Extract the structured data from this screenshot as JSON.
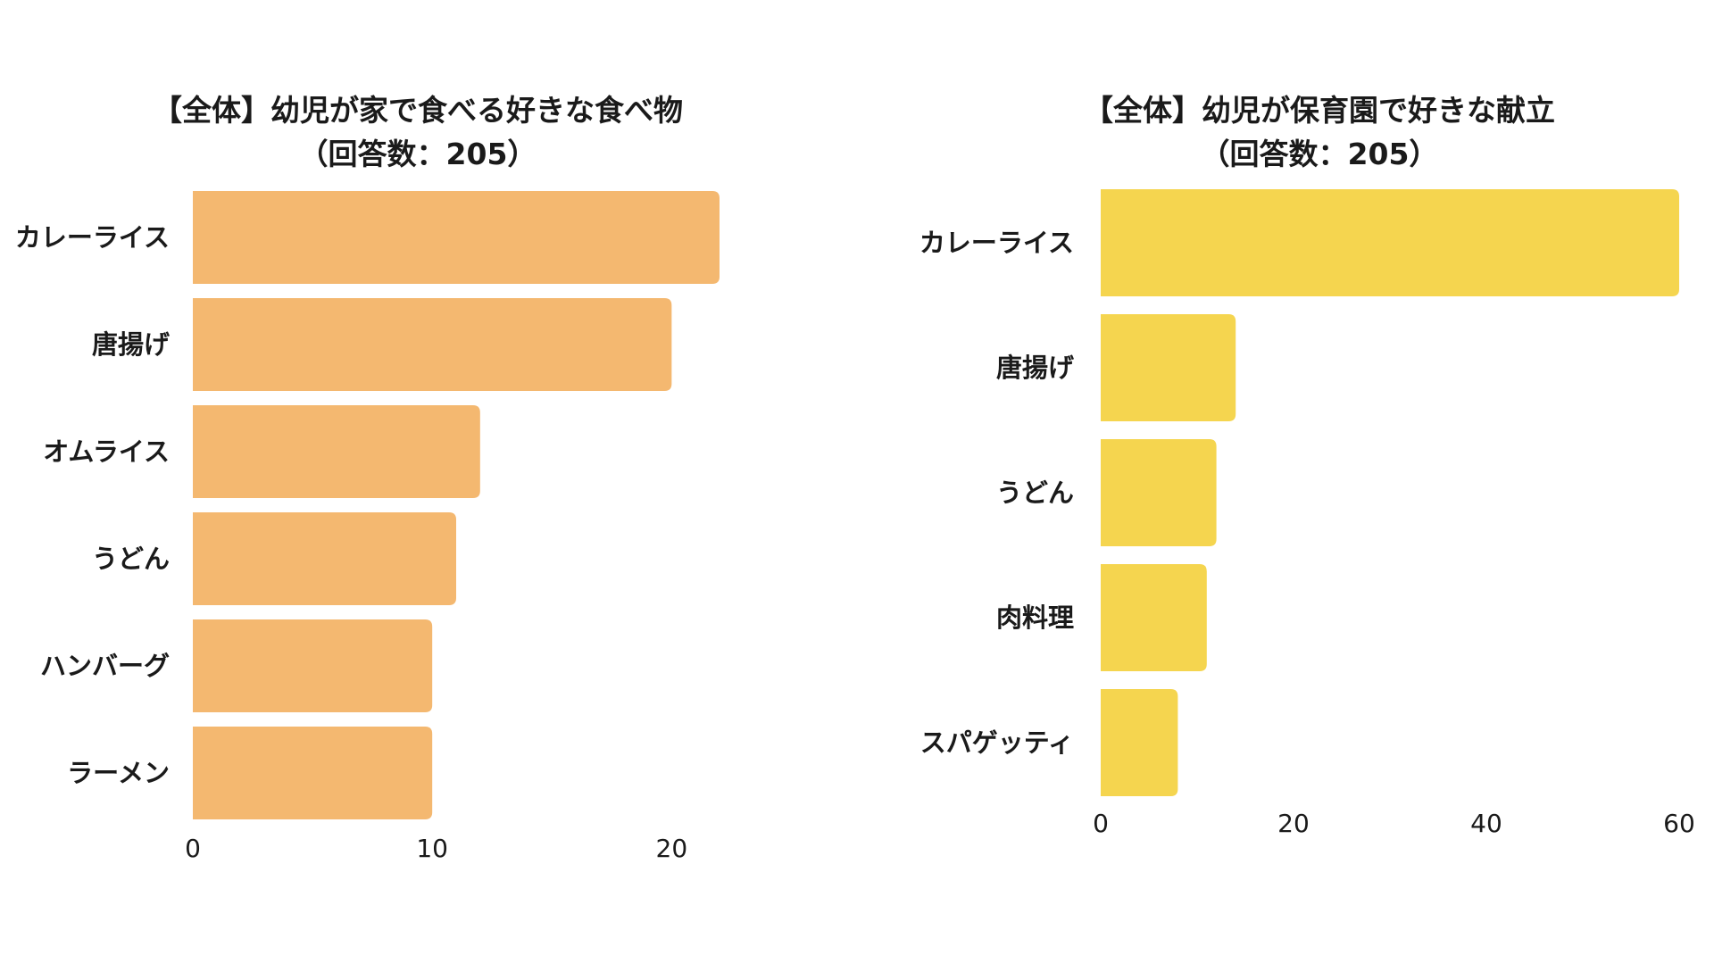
{
  "chart_data": [
    {
      "type": "bar",
      "orientation": "horizontal",
      "title_line1": "【全体】幼児が家で食べる好きな食べ物",
      "title_line2": "（回答数：205）",
      "categories": [
        "カレーライス",
        "唐揚げ",
        "オムライス",
        "うどん",
        "ハンバーグ",
        "ラーメン"
      ],
      "values": [
        22,
        20,
        12,
        11,
        10,
        10
      ],
      "xlim": [
        0,
        22
      ],
      "xticks": [
        "0",
        "10",
        "20"
      ],
      "color": "#F4B870",
      "grid": false
    },
    {
      "type": "bar",
      "orientation": "horizontal",
      "title_line1": "【全体】幼児が保育園で好きな献立",
      "title_line2": "（回答数：205）",
      "categories": [
        "カレーライス",
        "唐揚げ",
        "うどん",
        "肉料理",
        "スパゲッティ"
      ],
      "values": [
        60,
        14,
        12,
        11,
        8
      ],
      "xlim": [
        0,
        60
      ],
      "xticks": [
        "0",
        "20",
        "40",
        "60"
      ],
      "color": "#F5D54F",
      "grid": false
    }
  ]
}
